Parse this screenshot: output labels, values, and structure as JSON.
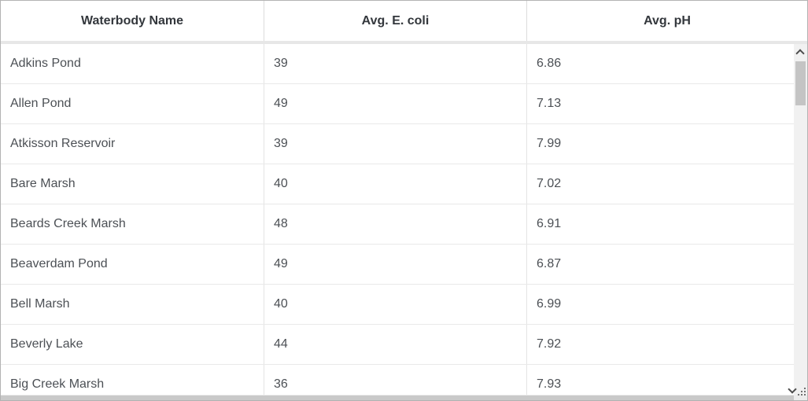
{
  "table": {
    "columns": [
      {
        "label": "Waterbody Name"
      },
      {
        "label": "Avg. E. coli"
      },
      {
        "label": "Avg. pH"
      }
    ],
    "rows": [
      {
        "name": "Adkins Pond",
        "ecoli": "39",
        "ph": "6.86"
      },
      {
        "name": "Allen Pond",
        "ecoli": "49",
        "ph": "7.13"
      },
      {
        "name": "Atkisson Reservoir",
        "ecoli": "39",
        "ph": "7.99"
      },
      {
        "name": "Bare Marsh",
        "ecoli": "40",
        "ph": "7.02"
      },
      {
        "name": "Beards Creek Marsh",
        "ecoli": "48",
        "ph": "6.91"
      },
      {
        "name": "Beaverdam Pond",
        "ecoli": "49",
        "ph": "6.87"
      },
      {
        "name": "Bell Marsh",
        "ecoli": "40",
        "ph": "6.99"
      },
      {
        "name": "Beverly Lake",
        "ecoli": "44",
        "ph": "7.92"
      },
      {
        "name": "Big Creek Marsh",
        "ecoli": "36",
        "ph": "7.93"
      }
    ]
  },
  "icons": {
    "scroll_up": "chevron-up",
    "scroll_down": "chevron-down",
    "resize_grip": "dot-staircase"
  },
  "colors": {
    "outer_border": "#b3b3b3",
    "header_text": "#33373c",
    "body_text": "#4c5055",
    "row_divider": "#e9e9e9",
    "column_divider": "#e4e4e4",
    "header_gap": "#e7e7e7",
    "scrollbar_track": "#f1f1f1",
    "scrollbar_thumb": "#c4c4c4",
    "hscroll_track": "#ececec",
    "hscroll_thumb": "#c9c9c9"
  }
}
